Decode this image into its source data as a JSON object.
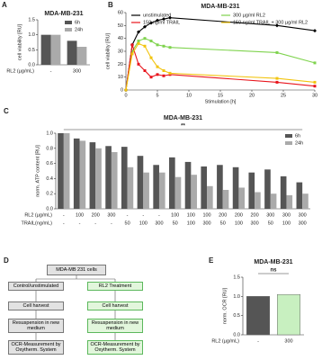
{
  "chart_data": [
    {
      "type": "bar",
      "letter": "A",
      "title": "MDA-MB-231",
      "y_label": "cell viability [RU]",
      "category_rows": [
        {
          "label": "RL2 (µg/mL)",
          "values": [
            "-",
            "300"
          ]
        }
      ],
      "series": [
        {
          "name": "6h",
          "color": "#555555",
          "values": [
            1.0,
            0.8
          ]
        },
        {
          "name": "24h",
          "color": "#aaaaaa",
          "values": [
            1.0,
            0.6
          ]
        }
      ],
      "ylim": [
        0,
        1.5
      ],
      "yticks": [
        {
          "value": 0,
          "label": "0.0"
        },
        {
          "value": 0.5,
          "label": "0.5"
        },
        {
          "value": 1,
          "label": "1.0"
        },
        {
          "value": 1.5,
          "label": "1.5"
        }
      ],
      "legend": "upper right"
    },
    {
      "type": "line",
      "letter": "B",
      "title": "MDA-MB-231",
      "y_label": "cell viability [RU]",
      "x_label": "Stimulation [h]",
      "x": [
        0,
        1,
        2,
        3,
        4,
        5,
        6,
        7,
        24,
        30
      ],
      "series": [
        {
          "name": "unstimulated",
          "color": "#000000",
          "marker": "diamond",
          "values": [
            0,
            35,
            45,
            49,
            52,
            54,
            55,
            56,
            50,
            46
          ]
        },
        {
          "name": "300 µg/ml RL2",
          "color": "#7fd34e",
          "marker": "square",
          "values": [
            0,
            30,
            38,
            40,
            38,
            35,
            34,
            33,
            29,
            21
          ]
        },
        {
          "name": "150 ng/ml TRAIL",
          "color": "#e8141c",
          "marker": "square",
          "values": [
            0,
            35,
            20,
            15,
            10,
            12,
            11,
            12,
            6,
            3
          ]
        },
        {
          "name": "150 ng/ml TRAIL + 300 µg/ml RL2",
          "color": "#f2c40f",
          "marker": "square",
          "values": [
            0,
            28,
            36,
            34,
            25,
            18,
            15,
            13,
            9,
            6
          ]
        }
      ],
      "xlim": [
        0,
        30
      ],
      "xticks": [
        0,
        5,
        10,
        15,
        20,
        25,
        30
      ],
      "ylim": [
        0,
        60
      ],
      "yticks": [
        0,
        10,
        20,
        30,
        40,
        50,
        60
      ],
      "legend": "upper"
    },
    {
      "type": "bar",
      "letter": "C",
      "title": "MDA-MB-231",
      "annotation": "**",
      "y_label": "norm. ATP content [RU]",
      "category_rows": [
        {
          "label": "RL2 (µg/mL)",
          "values": [
            "-",
            "100",
            "200",
            "300",
            "-",
            "-",
            "-",
            "100",
            "100",
            "100",
            "200",
            "200",
            "200",
            "300",
            "300",
            "300"
          ]
        },
        {
          "label": "TRAIL(ng/mL)",
          "values": [
            "-",
            "-",
            "-",
            "-",
            "50",
            "100",
            "300",
            "50",
            "100",
            "300",
            "50",
            "100",
            "300",
            "50",
            "100",
            "300"
          ]
        }
      ],
      "series": [
        {
          "name": "6h",
          "color": "#555555",
          "values": [
            1.0,
            0.93,
            0.88,
            0.83,
            0.82,
            0.7,
            0.58,
            0.68,
            0.62,
            0.56,
            0.58,
            0.55,
            0.48,
            0.52,
            0.43,
            0.35
          ]
        },
        {
          "name": "24h",
          "color": "#aaaaaa",
          "values": [
            1.0,
            0.9,
            0.8,
            0.75,
            0.55,
            0.48,
            0.48,
            0.42,
            0.45,
            0.3,
            0.25,
            0.28,
            0.22,
            0.2,
            0.18,
            0.2
          ]
        }
      ],
      "ylim": [
        0,
        1.0
      ],
      "yticks": [
        {
          "value": 0,
          "label": "0.0"
        },
        {
          "value": 0.2,
          "label": "0.2"
        },
        {
          "value": 0.4,
          "label": "0.4"
        },
        {
          "value": 0.6,
          "label": "0.6"
        },
        {
          "value": 0.8,
          "label": "0.8"
        },
        {
          "value": 1,
          "label": "1.0"
        }
      ],
      "legend": "upper right"
    },
    {
      "type": "bar",
      "letter": "E",
      "title": "MDA-MB-231",
      "annotation": "ns",
      "y_label": "norm. OCR [RU]",
      "category_rows": [
        {
          "label": "RL2 (µg/mL)",
          "values": [
            "-",
            "300"
          ]
        }
      ],
      "series": [
        {
          "colors": [
            "#555555",
            "#c8f0c0"
          ],
          "values": [
            1.0,
            1.05
          ]
        }
      ],
      "ylim": [
        0,
        1.5
      ],
      "yticks": [
        {
          "value": 0,
          "label": "0.0"
        },
        {
          "value": 0.5,
          "label": "0.5"
        },
        {
          "value": 1,
          "label": "1.0"
        },
        {
          "value": 1.5,
          "label": "1.5"
        }
      ]
    }
  ],
  "diagram": {
    "letter": "D",
    "source": "MDA-MB 231 cells",
    "columns": [
      {
        "steps": [
          "Control/unstimulated",
          "Cell harvest",
          "Resuspension in new medium",
          "OCR-Measurement by Oxytherm. System"
        ]
      },
      {
        "steps": [
          "RL2 Treatment",
          "Cell harvest",
          "Resuspension in new medium",
          "OCR-Measurement by Oxytherm. System"
        ]
      }
    ]
  }
}
